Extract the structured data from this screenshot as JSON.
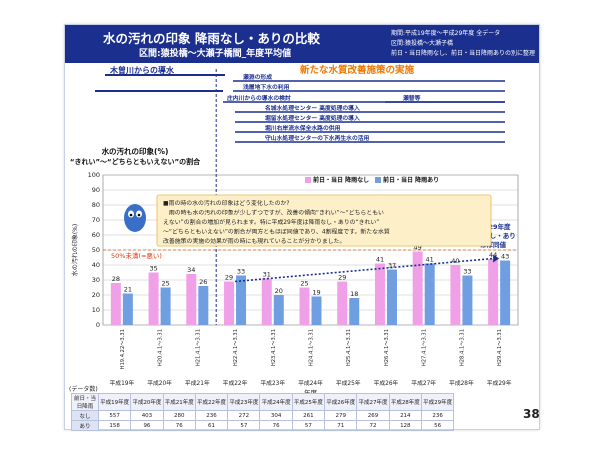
{
  "header": {
    "title": "水の汚れの印象 降雨なし・ありの比較",
    "subtitle": "区間:猿投橋～大瀬子橋間_年度平均値",
    "info": [
      "期間:平成19年度～平成29年度 全データ",
      "区間:猿投橋～大瀬子橋",
      "前日・当日降雨なし、前日・当日降雨ありの別に整理"
    ]
  },
  "timeline": {
    "left_label": "木曽川からの導水",
    "right_label": "新たな水質改善施策の実施",
    "items": [
      "瀬淵の形成",
      "浅層地下水の利用",
      "庄内川からの導水の検討",
      "名城水処理センター 高度処理の導入",
      "堀留水処理センター 高度処理の導入",
      "堀川右岸流水保全水路の供用",
      "守山水処理センターの下水再生水の活用",
      "瀬替等"
    ]
  },
  "callout": {
    "text": "■雨の時の水の汚れの印象はどう変化したのか?\n　雨の時も水の汚れの印象が少しずつですが、改善の傾向“きれい”～“どちらともいえない”の割合が増加が見られます。特に平成29年度は降雨のなし・ありの“きれい”～“どちらともいえない”の割合が両方ともほぼ同値であり、4割程度です。新たな水質改善施策の実施の効果が雨の時にも現れていることが分かりました。"
  },
  "annotations": {
    "threshold": "50%未満(=悪い)",
    "trend": "雨の時も水の汚れの印象が改善の傾向",
    "h29_note": "平成29年度\n降雨なし・あり\nほぼ同値"
  },
  "page_number": "38",
  "data_count_label": "(データ数)",
  "table": {
    "header": "前日・当日降雨",
    "years": [
      "平成19年度",
      "平成20年度",
      "平成21年度",
      "平成22年度",
      "平成23年度",
      "平成24年度",
      "平成25年度",
      "平成26年度",
      "平成27年度",
      "平成28年度",
      "平成29年度"
    ],
    "rows": [
      {
        "label": "なし",
        "values": [
          "557",
          "403",
          "280",
          "236",
          "272",
          "304",
          "261",
          "279",
          "269",
          "214",
          "236"
        ]
      },
      {
        "label": "あり",
        "values": [
          "158",
          "96",
          "76",
          "61",
          "57",
          "76",
          "57",
          "71",
          "72",
          "128",
          "56"
        ]
      }
    ]
  },
  "chart_data": {
    "type": "bar",
    "title": "",
    "ylabel": "水の汚れの印象(%)",
    "xlabel": "年度",
    "ylim": [
      0,
      100
    ],
    "yticks": [
      0,
      10,
      20,
      30,
      40,
      50,
      60,
      70,
      80,
      90,
      100
    ],
    "grid": true,
    "legend_position": "top-right",
    "y_side_label": "水の汚れの印象(%)\n“きれい”～“どちらともいえない”の割合",
    "categories": [
      "H19.4.22～3.31",
      "H20.4.1～3.31",
      "H21.4.1～3.31",
      "H22.4.1～3.31",
      "H23.4.1～3.31",
      "H24.4.1～3.31",
      "H25.4.1～3.31",
      "H26.4.1～3.31",
      "H27.4.1～3.31",
      "H28.4.1～3.31",
      "H29.4.1～3.31"
    ],
    "year_labels": [
      "平成19年",
      "平成20年",
      "平成21年",
      "平成22年",
      "平成23年",
      "平成24年",
      "平成25年",
      "平成26年",
      "平成27年",
      "平成28年",
      "平成29年"
    ],
    "series": [
      {
        "name": "前日・当日 降雨なし",
        "color": "#f0a0e6",
        "values": [
          28,
          35,
          34,
          29,
          31,
          25,
          29,
          41,
          49,
          40,
          44
        ]
      },
      {
        "name": "前日・当日 降雨あり",
        "color": "#6f9fe0",
        "values": [
          21,
          25,
          26,
          33,
          20,
          19,
          18,
          37,
          41,
          33,
          43
        ]
      }
    ]
  }
}
